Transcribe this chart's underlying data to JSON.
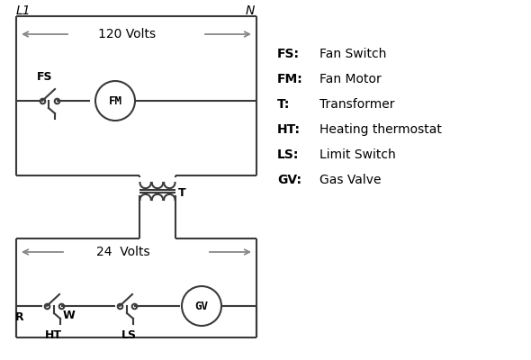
{
  "bg_color": "#ffffff",
  "line_color": "#3a3a3a",
  "arrow_color": "#888888",
  "text_color": "#000000",
  "legend_items": [
    [
      "FS:",
      "Fan Switch"
    ],
    [
      "FM:",
      "Fan Motor"
    ],
    [
      "T:",
      "Transformer"
    ],
    [
      "HT:",
      "Heating thermostat"
    ],
    [
      "LS:",
      "Limit Switch"
    ],
    [
      "GV:",
      "Gas Valve"
    ]
  ],
  "figsize": [
    5.9,
    4.0
  ],
  "dpi": 100
}
